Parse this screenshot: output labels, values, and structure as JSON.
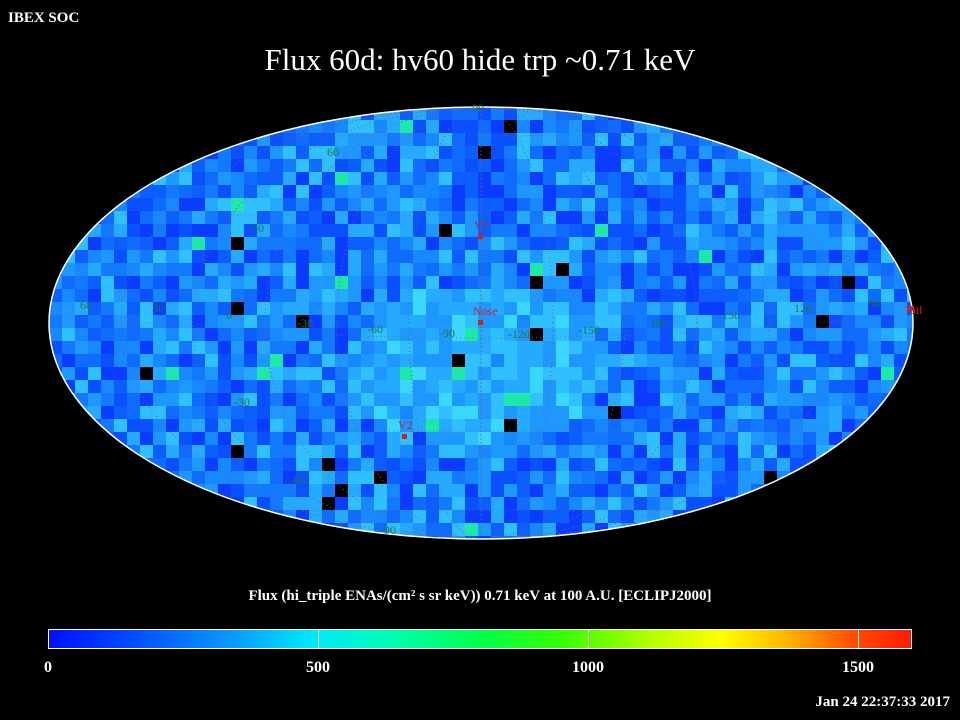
{
  "header": {
    "organization": "IBEX SOC",
    "title": "Flux   60d: hv60 hide trp ~0.71 keV"
  },
  "map": {
    "projection": "mollweide",
    "frame": "ECLIPJ2000",
    "grid_longitudes": [
      "60",
      "30",
      "0",
      "-30",
      "-60",
      "-90",
      "-120",
      "-150",
      "180",
      "150",
      "120",
      "90"
    ],
    "grid_latitudes": [
      "60",
      "30",
      "-30",
      "-60",
      "90",
      "-90"
    ],
    "markers": {
      "v1": "V1",
      "nose": "Nose",
      "v2": "V2",
      "tail": "Tail"
    },
    "colors": {
      "background": "#000000",
      "grid": "#6a6a6a",
      "grid_label": "#1f7a3a",
      "marker": "#d02020",
      "frame": "#ffffff"
    }
  },
  "colorbar": {
    "title": "Flux (hi_triple ENAs/(cm² s sr keV))  0.71 keV at 100 A.U. [ECLIPJ2000]",
    "ticks": [
      "0",
      "500",
      "1000",
      "1500"
    ],
    "range": [
      0,
      1600
    ]
  },
  "footer": {
    "timestamp": "Jan 24 22:37:33 2017"
  }
}
